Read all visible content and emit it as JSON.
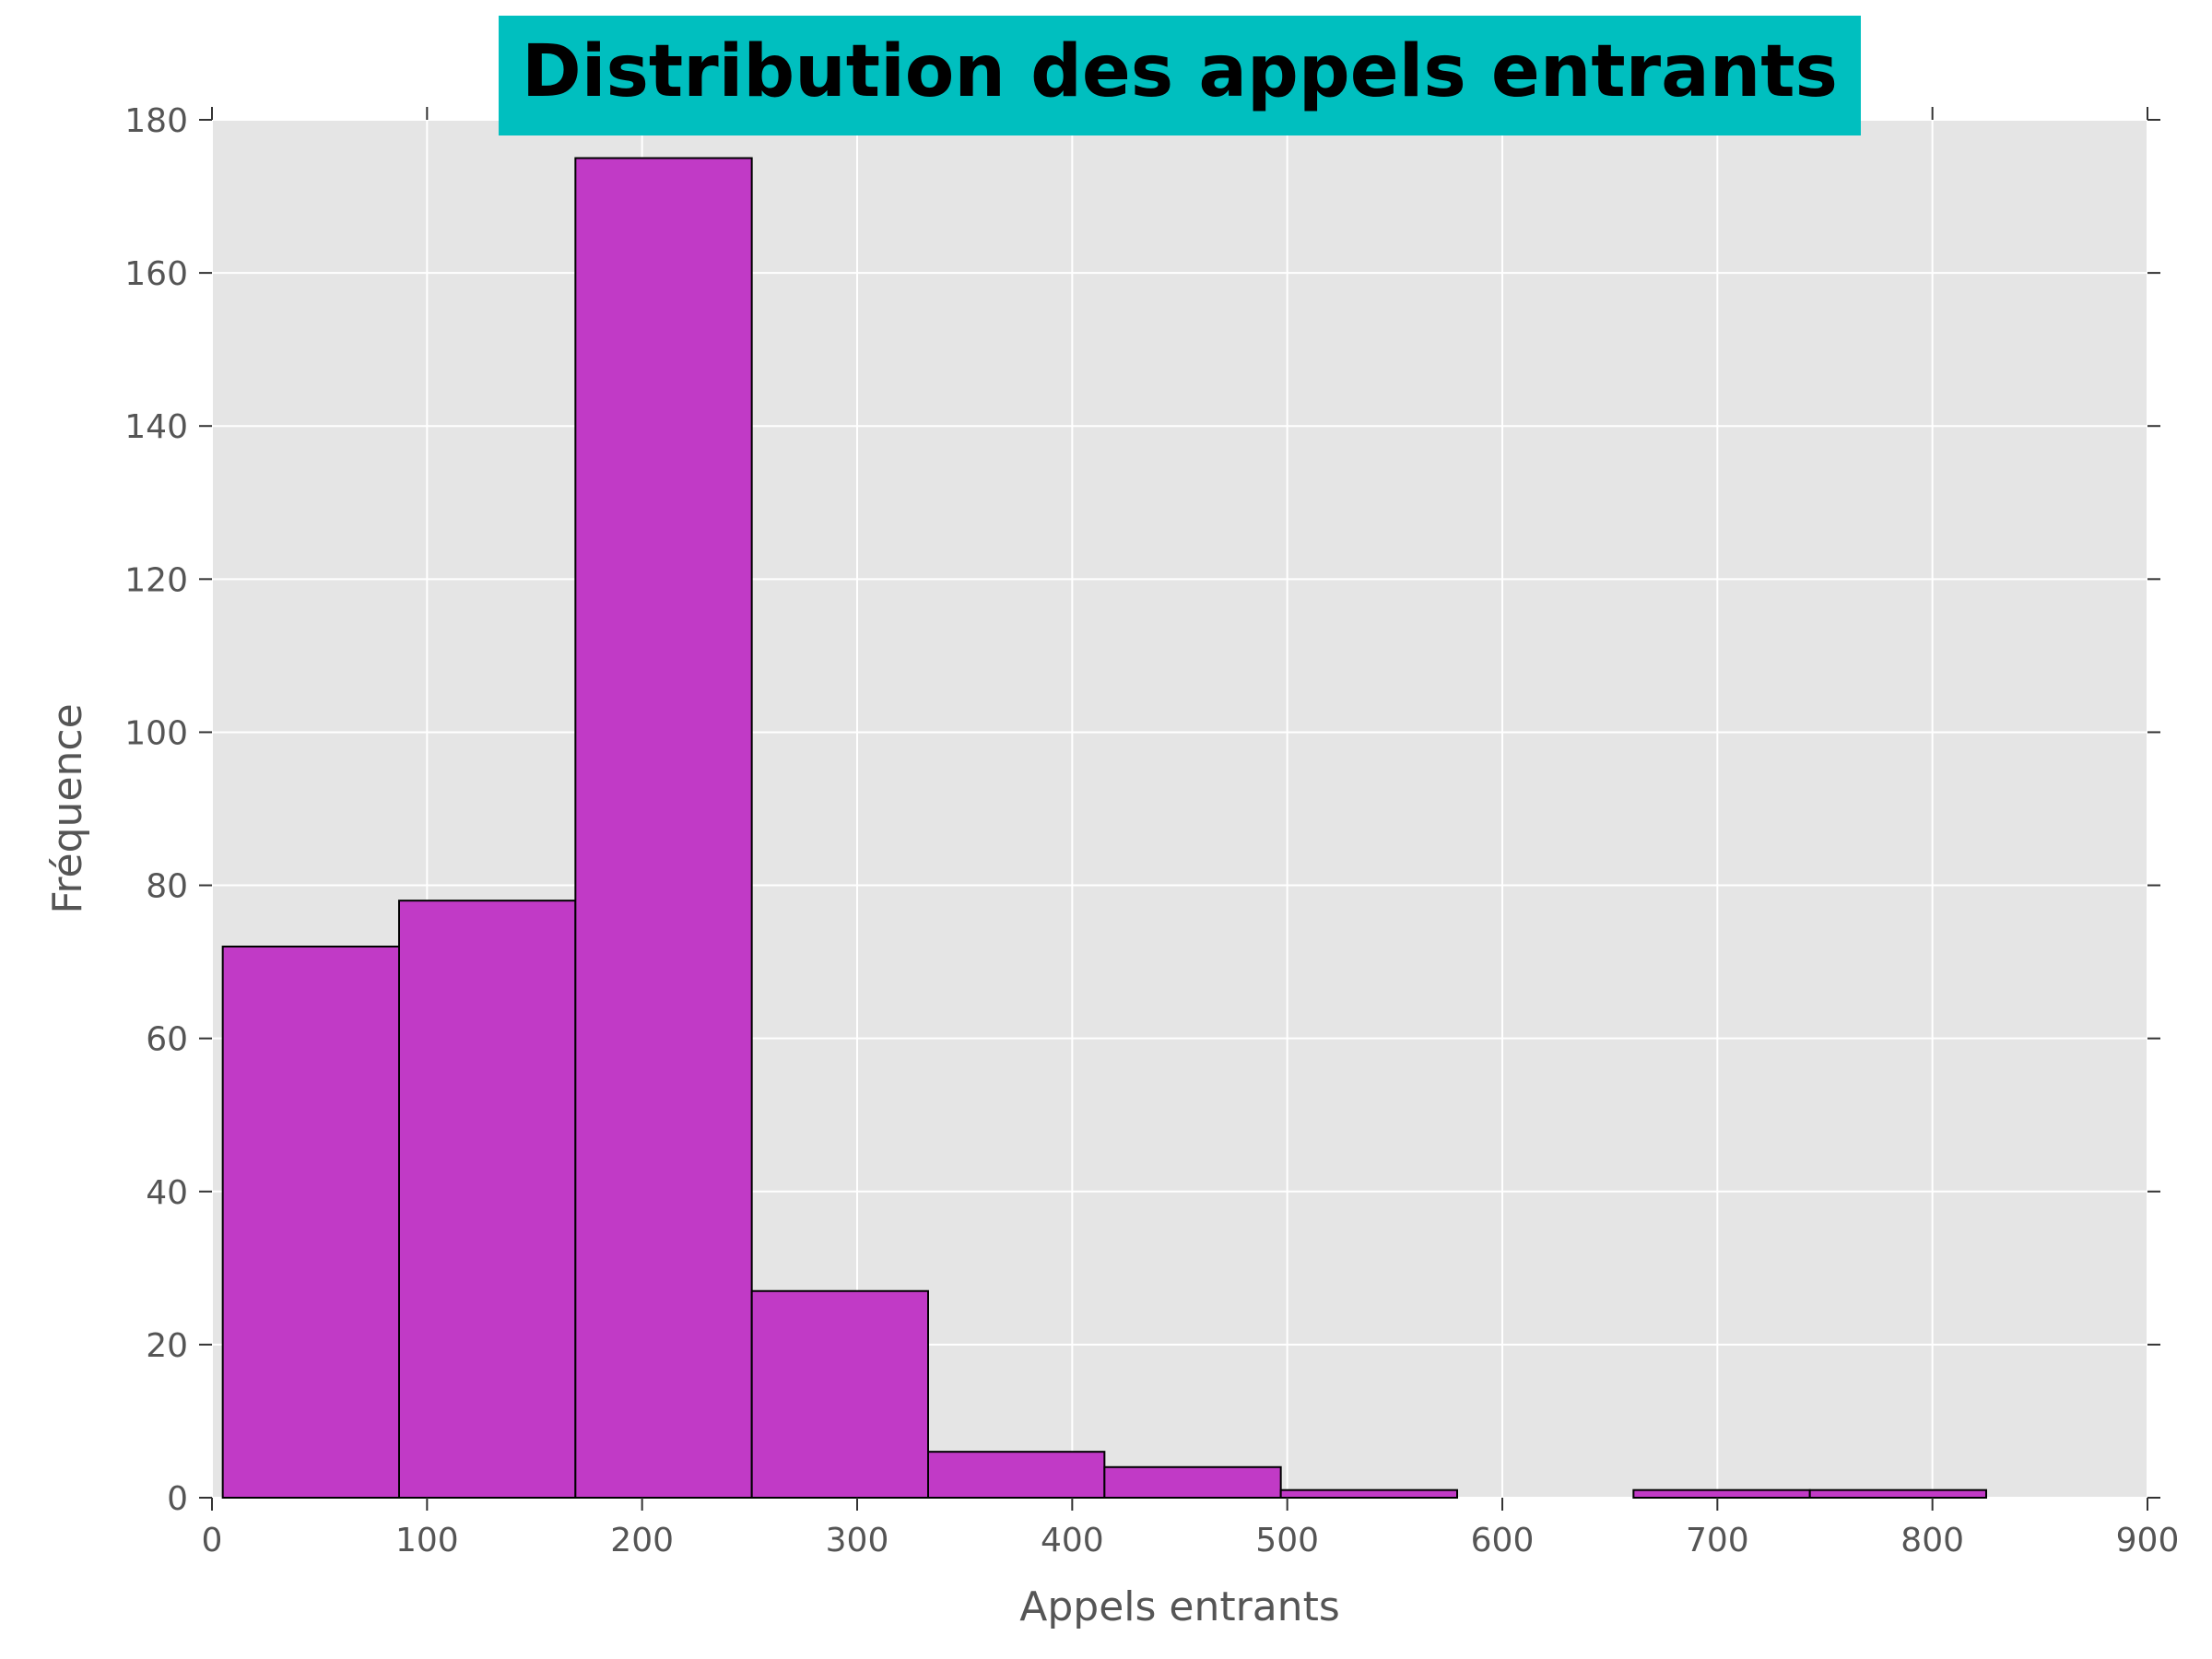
{
  "chart_data": {
    "type": "bar",
    "title": "Distribution des appels entrants",
    "xlabel": "Appels entrants",
    "ylabel": "Fréquence",
    "xlim": [
      0,
      900
    ],
    "ylim": [
      0,
      180
    ],
    "xticks": [
      0,
      100,
      200,
      300,
      400,
      500,
      600,
      700,
      800,
      900
    ],
    "yticks": [
      0,
      20,
      40,
      60,
      80,
      100,
      120,
      140,
      160,
      180
    ],
    "grid": true,
    "bins": [
      {
        "x0": 5,
        "x1": 87,
        "count": 72
      },
      {
        "x0": 87,
        "x1": 169,
        "count": 78
      },
      {
        "x0": 169,
        "x1": 251,
        "count": 175
      },
      {
        "x0": 251,
        "x1": 333,
        "count": 27
      },
      {
        "x0": 333,
        "x1": 415,
        "count": 6
      },
      {
        "x0": 415,
        "x1": 497,
        "count": 4
      },
      {
        "x0": 497,
        "x1": 579,
        "count": 1
      },
      {
        "x0": 579,
        "x1": 661,
        "count": 0
      },
      {
        "x0": 661,
        "x1": 743,
        "count": 1
      },
      {
        "x0": 743,
        "x1": 825,
        "count": 1
      }
    ],
    "colors": {
      "bar_fill": "#c13ac6",
      "bar_edge": "#000000",
      "plot_background": "#e5e5e5",
      "grid": "#ffffff",
      "title_box": "#00bfbf"
    }
  }
}
